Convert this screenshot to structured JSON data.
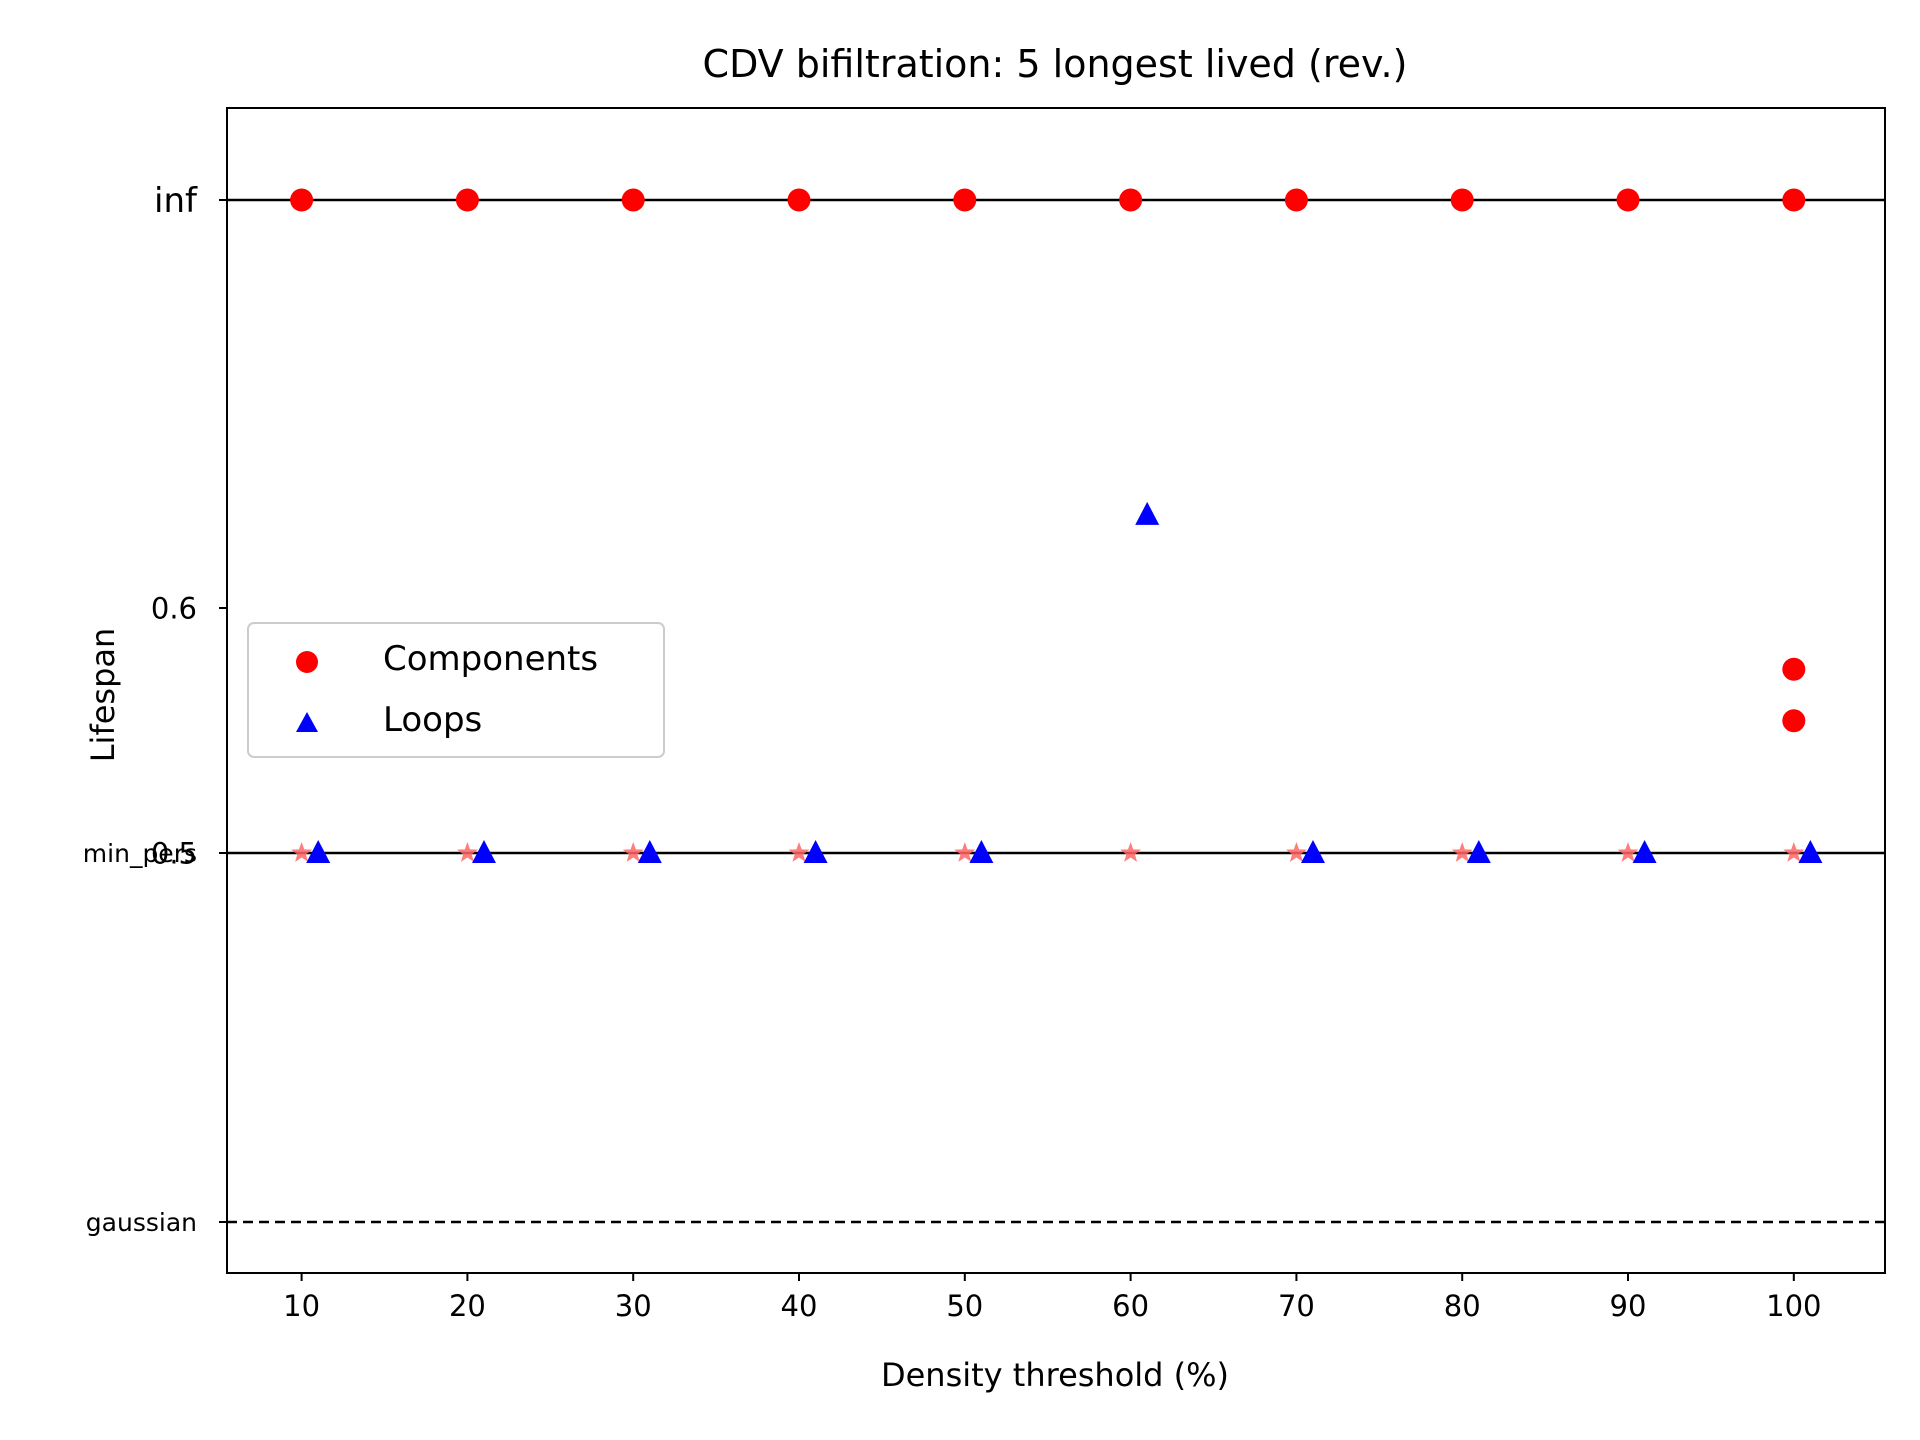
{
  "chart_data": {
    "type": "scatter",
    "title": "CDV bifiltration: 5 longest lived (rev.)",
    "xlabel": "Density threshold (%)",
    "ylabel": "Lifespan",
    "xlim": [
      5.5,
      105.5
    ],
    "x_ticks": [
      "10",
      "20",
      "30",
      "40",
      "50",
      "60",
      "70",
      "80",
      "90",
      "100"
    ],
    "y_ticks": [
      {
        "value": "inf",
        "label": "inf"
      },
      {
        "value": 0.6,
        "label": "0.6"
      },
      {
        "value": 0.5,
        "label": "0.5"
      },
      {
        "value": "min_pers",
        "label": "min_pers"
      },
      {
        "value": "gaussian",
        "label": "gaussian"
      }
    ],
    "reference_lines": [
      {
        "label": "inf",
        "style": "solid"
      },
      {
        "label": "min_pers",
        "y": 0.5,
        "style": "solid"
      },
      {
        "label": "gaussian",
        "style": "dashed"
      }
    ],
    "legend": {
      "placement": "center-left",
      "entries": [
        "Components",
        "Loops"
      ]
    },
    "series": [
      {
        "name": "Components",
        "marker": "circle",
        "color": "#ff0000",
        "points": [
          {
            "x": 10,
            "y": "inf"
          },
          {
            "x": 20,
            "y": "inf"
          },
          {
            "x": 30,
            "y": "inf"
          },
          {
            "x": 40,
            "y": "inf"
          },
          {
            "x": 50,
            "y": "inf"
          },
          {
            "x": 60,
            "y": "inf"
          },
          {
            "x": 70,
            "y": "inf"
          },
          {
            "x": 80,
            "y": "inf"
          },
          {
            "x": 90,
            "y": "inf"
          },
          {
            "x": 100,
            "y": "inf"
          },
          {
            "x": 100,
            "y": 0.575
          },
          {
            "x": 100,
            "y": 0.554
          }
        ]
      },
      {
        "name": "Loops",
        "marker": "triangle",
        "color": "#0000ff",
        "points": [
          {
            "x": 11,
            "y": 0.5
          },
          {
            "x": 21,
            "y": 0.5
          },
          {
            "x": 31,
            "y": 0.5
          },
          {
            "x": 41,
            "y": 0.5
          },
          {
            "x": 51,
            "y": 0.5
          },
          {
            "x": 61,
            "y": 0.638
          },
          {
            "x": 71,
            "y": 0.5
          },
          {
            "x": 81,
            "y": 0.5
          },
          {
            "x": 91,
            "y": 0.5
          },
          {
            "x": 101,
            "y": 0.5
          }
        ]
      },
      {
        "marker": "star",
        "color": "#ff6666",
        "points": [
          {
            "x": 10,
            "y": 0.5
          },
          {
            "x": 20,
            "y": 0.5
          },
          {
            "x": 30,
            "y": 0.5
          },
          {
            "x": 40,
            "y": 0.5
          },
          {
            "x": 50,
            "y": 0.5
          },
          {
            "x": 60,
            "y": 0.5
          },
          {
            "x": 70,
            "y": 0.5
          },
          {
            "x": 80,
            "y": 0.5
          },
          {
            "x": 90,
            "y": 0.5
          },
          {
            "x": 100,
            "y": 0.5
          }
        ]
      }
    ]
  }
}
